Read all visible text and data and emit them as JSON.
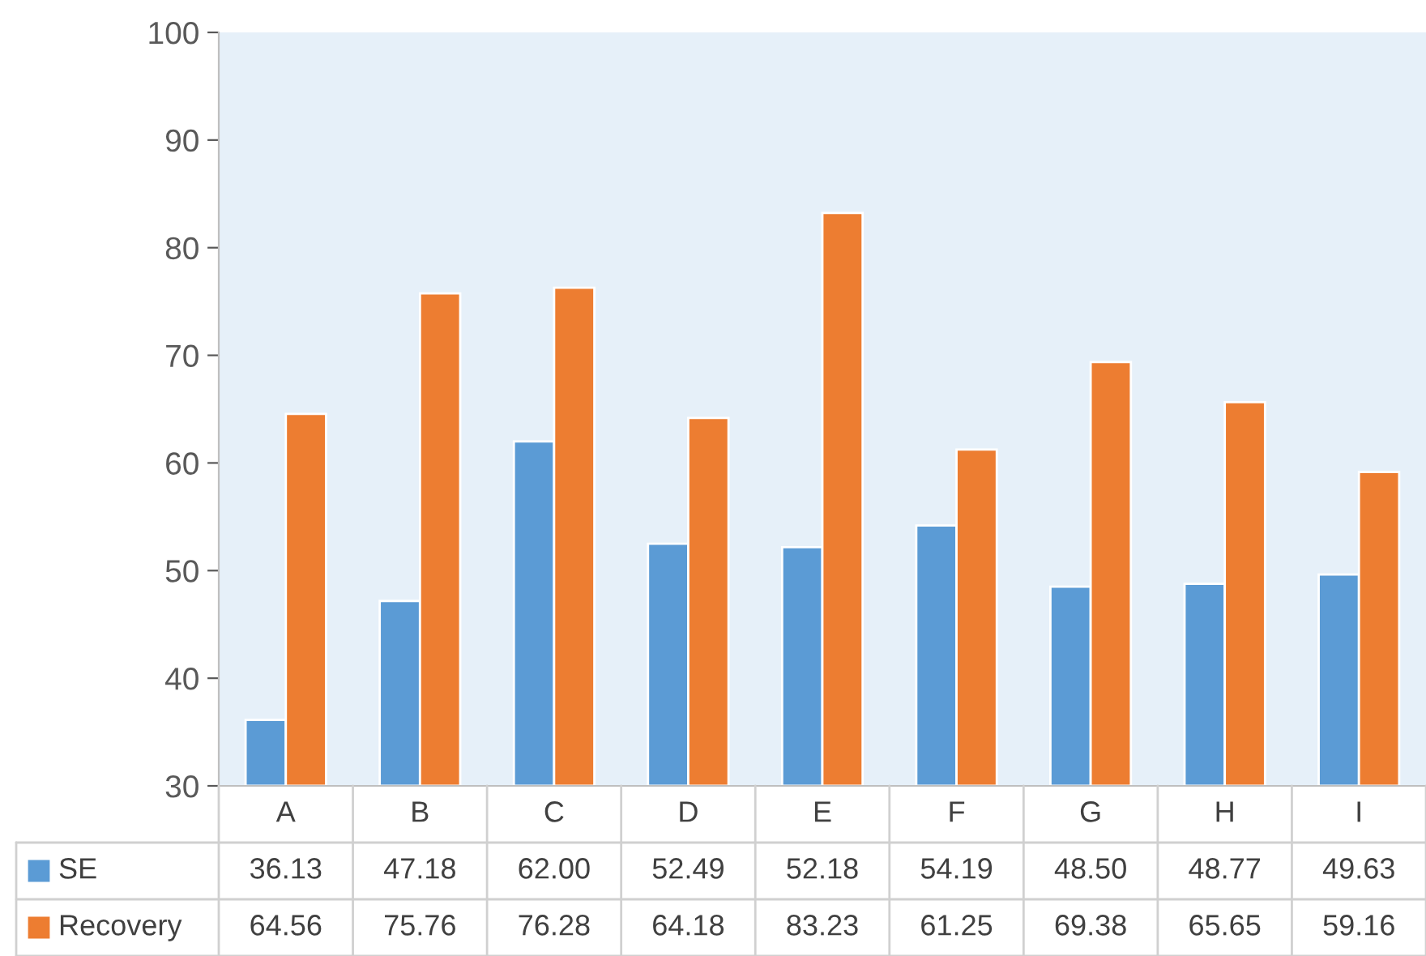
{
  "chart_data": {
    "type": "bar",
    "categories": [
      "A",
      "B",
      "C",
      "D",
      "E",
      "F",
      "G",
      "H",
      "I"
    ],
    "series": [
      {
        "name": "SE",
        "color": "#5b9bd5",
        "values": [
          36.13,
          47.18,
          62.0,
          52.49,
          52.18,
          54.19,
          48.5,
          48.77,
          49.63
        ],
        "value_labels": [
          "36.13",
          "47.18",
          "62.00",
          "52.49",
          "52.18",
          "54.19",
          "48.50",
          "48.77",
          "49.63"
        ]
      },
      {
        "name": "Recovery",
        "color": "#ed7d31",
        "values": [
          64.56,
          75.76,
          76.28,
          64.18,
          83.23,
          61.25,
          69.38,
          65.65,
          59.16
        ],
        "value_labels": [
          "64.56",
          "75.76",
          "76.28",
          "64.18",
          "83.23",
          "61.25",
          "69.38",
          "65.65",
          "59.16"
        ]
      }
    ],
    "ylim": [
      30,
      100
    ],
    "yticks": [
      30,
      40,
      50,
      60,
      70,
      80,
      90,
      100
    ],
    "grid": false,
    "legend": "bottom"
  }
}
